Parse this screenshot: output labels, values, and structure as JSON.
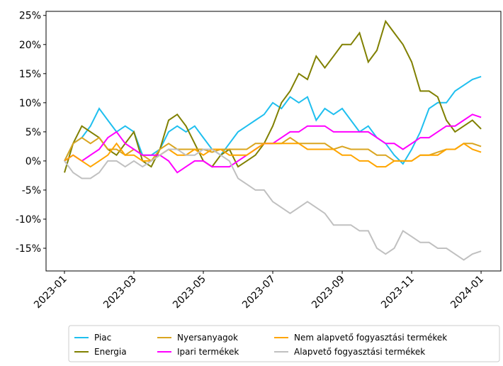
{
  "chart_data": {
    "type": "line",
    "x": [
      0,
      0.25,
      0.5,
      0.75,
      1,
      1.25,
      1.5,
      1.75,
      2,
      2.25,
      2.5,
      2.75,
      3,
      3.25,
      3.5,
      3.75,
      4,
      4.25,
      4.5,
      4.75,
      5,
      5.25,
      5.5,
      5.75,
      6,
      6.25,
      6.5,
      6.75,
      7,
      7.25,
      7.5,
      7.75,
      8,
      8.25,
      8.5,
      8.75,
      9,
      9.25,
      9.5,
      9.75,
      10,
      10.25,
      10.5,
      10.75,
      11,
      11.25,
      11.5,
      11.75,
      12
    ],
    "xlim": [
      -0.53,
      12.57
    ],
    "xticks": [
      {
        "value": 0,
        "label": "2023-01"
      },
      {
        "value": 2,
        "label": "2023-03"
      },
      {
        "value": 4,
        "label": "2023-05"
      },
      {
        "value": 6,
        "label": "2023-07"
      },
      {
        "value": 8,
        "label": "2023-09"
      },
      {
        "value": 10,
        "label": "2023-11"
      },
      {
        "value": 12,
        "label": "2024-01"
      }
    ],
    "ylim": [
      -18.9,
      25.7
    ],
    "yticks": [
      {
        "value": -15,
        "label": "-15%"
      },
      {
        "value": -10,
        "label": "-10%"
      },
      {
        "value": -5,
        "label": "-5%"
      },
      {
        "value": 0,
        "label": "0%"
      },
      {
        "value": 5,
        "label": "5%"
      },
      {
        "value": 10,
        "label": "10%"
      },
      {
        "value": 15,
        "label": "15%"
      },
      {
        "value": 20,
        "label": "20%"
      },
      {
        "value": 25,
        "label": "25%"
      }
    ],
    "legend": "lower center outside",
    "series": [
      {
        "name": "Piac",
        "color": "#1fbfef",
        "values": [
          0,
          3,
          4,
          6,
          9,
          7,
          5,
          6,
          5,
          1,
          1,
          2,
          5,
          6,
          5,
          6,
          4,
          2,
          1,
          3,
          5,
          6,
          7,
          8,
          10,
          9,
          11,
          10,
          11,
          7,
          9,
          8,
          9,
          7,
          5,
          6,
          4,
          3,
          1,
          -0.5,
          2,
          5,
          9,
          10,
          10,
          12,
          13,
          14,
          14.5
        ]
      },
      {
        "name": "Energia",
        "color": "#808000",
        "values": [
          -2,
          3,
          6,
          5,
          4,
          2,
          1,
          3,
          5,
          0,
          -1,
          2,
          7,
          8,
          6,
          3,
          0,
          -1,
          1,
          2,
          -1,
          0,
          1,
          3,
          6,
          10,
          12,
          15,
          14,
          18,
          16,
          18,
          20,
          20,
          22,
          17,
          19,
          24,
          22,
          20,
          17,
          12,
          12,
          11,
          7,
          5,
          6,
          7,
          5.5
        ]
      },
      {
        "name": "Nyersanyagok",
        "color": "#daa520",
        "values": [
          0,
          3,
          4,
          3,
          4,
          2,
          2,
          1,
          2,
          1,
          0,
          2,
          3,
          2,
          2,
          2,
          2,
          1.5,
          2,
          2,
          2,
          2,
          3,
          3,
          3,
          3,
          4,
          3,
          3,
          3,
          3,
          2,
          2.5,
          2,
          2,
          2,
          1,
          1,
          0,
          0,
          0,
          1,
          1,
          1.5,
          2,
          2,
          3,
          3,
          2.5
        ]
      },
      {
        "name": "Ipari termékek",
        "color": "#ff00ff",
        "values": [
          0,
          1,
          0,
          1,
          2,
          4,
          5,
          3,
          2,
          1,
          1,
          1,
          0,
          -2,
          -1,
          0,
          0,
          -1,
          -1,
          -1,
          0,
          1,
          2,
          3,
          3,
          4,
          5,
          5,
          6,
          6,
          6,
          5,
          5,
          5,
          5,
          5,
          4,
          3,
          3,
          2,
          3,
          4,
          4,
          5,
          6,
          6,
          7,
          8,
          7.5
        ]
      },
      {
        "name": "Nem alapvető fogyasztási termékek",
        "color": "#ffa500",
        "values": [
          0,
          1,
          0,
          -1,
          0,
          1,
          3,
          1,
          1,
          0,
          0,
          1,
          2,
          1,
          1,
          2,
          1,
          2,
          2,
          1,
          1,
          1,
          2,
          3,
          3,
          3,
          3,
          3,
          2,
          2,
          2,
          2,
          1,
          1,
          0,
          0,
          -1,
          -1,
          0,
          0,
          0,
          1,
          1,
          1,
          2,
          2,
          3,
          2,
          1.5
        ]
      },
      {
        "name": "Alapvető fogyasztási termékek",
        "color": "#c0c0c0",
        "values": [
          0,
          -2,
          -3,
          -3,
          -2,
          0,
          0,
          -1,
          0,
          -1,
          0,
          1,
          2,
          2,
          1,
          1,
          2,
          2,
          1,
          0,
          -3,
          -4,
          -5,
          -5,
          -7,
          -8,
          -9,
          -8,
          -7,
          -8,
          -9,
          -11,
          -11,
          -11,
          -12,
          -12,
          -15,
          -16,
          -15,
          -12,
          -13,
          -14,
          -14,
          -15,
          -15,
          -16,
          -17,
          -16,
          -15.5
        ]
      }
    ]
  }
}
